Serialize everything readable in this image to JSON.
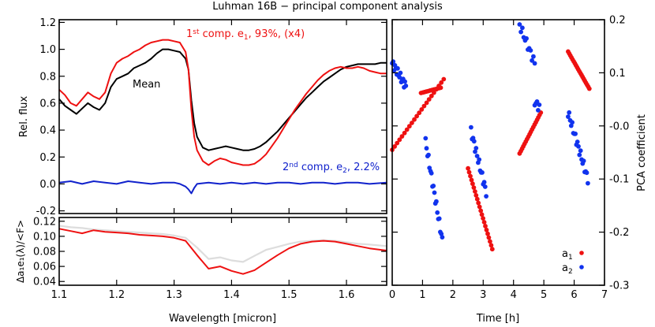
{
  "title": "Luhman 16B − principal component analysis",
  "colors": {
    "red": "#ee1111",
    "black": "#000000",
    "blue": "#1122cc",
    "gray": "#dddddd",
    "blue_dots": "#1133ee"
  },
  "chart_data": [
    {
      "id": "spectra",
      "type": "line",
      "ylabel": "Rel. flux",
      "xlim": [
        1.1,
        1.67
      ],
      "ylim": [
        -0.22,
        1.22
      ],
      "yticks": [
        -0.2,
        0.0,
        0.2,
        0.4,
        0.6,
        0.8,
        1.0,
        1.2
      ],
      "ytick_labels": [
        "-0.2",
        "0.0",
        "0.2",
        "0.4",
        "0.6",
        "0.8",
        "1.0",
        "1.2"
      ],
      "annotations": {
        "mean": "Mean",
        "comp1": {
          "pre": "1",
          "sup": "st",
          "mid": " comp. e",
          "sub": "1",
          "post": ", 93%, (x4)"
        },
        "comp2": {
          "pre": "2",
          "sup": "nd",
          "mid": " comp. e",
          "sub": "2",
          "post": ", 2.2%"
        }
      },
      "series": [
        {
          "name": "Mean",
          "color": "#000000",
          "x": [
            1.1,
            1.11,
            1.12,
            1.13,
            1.14,
            1.15,
            1.16,
            1.17,
            1.18,
            1.19,
            1.2,
            1.21,
            1.22,
            1.23,
            1.24,
            1.25,
            1.26,
            1.27,
            1.28,
            1.29,
            1.3,
            1.31,
            1.32,
            1.325,
            1.33,
            1.335,
            1.34,
            1.35,
            1.36,
            1.37,
            1.38,
            1.39,
            1.4,
            1.41,
            1.42,
            1.43,
            1.44,
            1.45,
            1.46,
            1.47,
            1.48,
            1.49,
            1.5,
            1.51,
            1.52,
            1.53,
            1.54,
            1.55,
            1.56,
            1.57,
            1.58,
            1.59,
            1.6,
            1.61,
            1.62,
            1.63,
            1.64,
            1.65,
            1.66,
            1.67
          ],
          "y": [
            0.63,
            0.58,
            0.55,
            0.52,
            0.56,
            0.6,
            0.57,
            0.55,
            0.6,
            0.72,
            0.78,
            0.8,
            0.82,
            0.86,
            0.88,
            0.9,
            0.93,
            0.97,
            1.0,
            1.0,
            0.99,
            0.98,
            0.93,
            0.85,
            0.62,
            0.45,
            0.35,
            0.27,
            0.25,
            0.26,
            0.27,
            0.28,
            0.27,
            0.26,
            0.25,
            0.25,
            0.26,
            0.28,
            0.31,
            0.35,
            0.39,
            0.44,
            0.49,
            0.54,
            0.59,
            0.64,
            0.68,
            0.72,
            0.76,
            0.79,
            0.82,
            0.85,
            0.87,
            0.88,
            0.89,
            0.89,
            0.89,
            0.89,
            0.9,
            0.9
          ]
        },
        {
          "name": "1st comp. e1",
          "color": "#ee1111",
          "x": [
            1.1,
            1.11,
            1.12,
            1.13,
            1.14,
            1.15,
            1.16,
            1.17,
            1.18,
            1.19,
            1.2,
            1.21,
            1.22,
            1.23,
            1.24,
            1.25,
            1.26,
            1.27,
            1.28,
            1.29,
            1.3,
            1.31,
            1.32,
            1.325,
            1.33,
            1.335,
            1.34,
            1.35,
            1.36,
            1.37,
            1.38,
            1.39,
            1.4,
            1.41,
            1.42,
            1.43,
            1.44,
            1.45,
            1.46,
            1.47,
            1.48,
            1.49,
            1.5,
            1.51,
            1.52,
            1.53,
            1.54,
            1.55,
            1.56,
            1.57,
            1.58,
            1.59,
            1.6,
            1.61,
            1.62,
            1.63,
            1.64,
            1.65,
            1.66,
            1.67
          ],
          "y": [
            0.7,
            0.66,
            0.6,
            0.58,
            0.63,
            0.68,
            0.65,
            0.63,
            0.68,
            0.82,
            0.9,
            0.93,
            0.95,
            0.98,
            1.0,
            1.03,
            1.05,
            1.06,
            1.07,
            1.07,
            1.06,
            1.05,
            0.98,
            0.85,
            0.55,
            0.35,
            0.25,
            0.17,
            0.14,
            0.17,
            0.19,
            0.18,
            0.16,
            0.15,
            0.14,
            0.14,
            0.15,
            0.18,
            0.22,
            0.28,
            0.34,
            0.41,
            0.48,
            0.55,
            0.61,
            0.67,
            0.72,
            0.77,
            0.81,
            0.84,
            0.86,
            0.87,
            0.86,
            0.86,
            0.87,
            0.86,
            0.84,
            0.83,
            0.82,
            0.82
          ]
        },
        {
          "name": "2nd comp. e2",
          "color": "#1122cc",
          "x": [
            1.1,
            1.12,
            1.14,
            1.16,
            1.18,
            1.2,
            1.22,
            1.24,
            1.26,
            1.28,
            1.3,
            1.31,
            1.32,
            1.325,
            1.33,
            1.335,
            1.34,
            1.36,
            1.38,
            1.4,
            1.42,
            1.44,
            1.46,
            1.48,
            1.5,
            1.52,
            1.54,
            1.56,
            1.58,
            1.6,
            1.62,
            1.64,
            1.67
          ],
          "y": [
            0.01,
            0.02,
            0.0,
            0.02,
            0.01,
            0.0,
            0.02,
            0.01,
            0.0,
            0.01,
            0.01,
            0.0,
            -0.02,
            -0.04,
            -0.07,
            -0.03,
            0.0,
            0.01,
            0.0,
            0.01,
            0.0,
            0.01,
            0.0,
            0.01,
            0.01,
            0.0,
            0.01,
            0.01,
            0.0,
            0.01,
            0.01,
            0.0,
            0.01
          ]
        }
      ]
    },
    {
      "id": "variability",
      "type": "line",
      "ylabel": "Δa₁e₁(λ)/<F>",
      "xlabel": "Wavelength [micron]",
      "xlim": [
        1.1,
        1.67
      ],
      "ylim": [
        0.035,
        0.125
      ],
      "xticks": [
        1.1,
        1.2,
        1.3,
        1.4,
        1.5,
        1.6
      ],
      "xtick_labels": [
        "1.1",
        "1.2",
        "1.3",
        "1.4",
        "1.5",
        "1.6"
      ],
      "yticks": [
        0.04,
        0.06,
        0.08,
        0.1,
        0.12
      ],
      "ytick_labels": [
        "0.04",
        "0.06",
        "0.08",
        "0.10",
        "0.12"
      ],
      "series": [
        {
          "name": "",
          "color": "#dddddd",
          "x": [
            1.1,
            1.12,
            1.14,
            1.16,
            1.18,
            1.2,
            1.22,
            1.24,
            1.26,
            1.28,
            1.3,
            1.32,
            1.34,
            1.36,
            1.38,
            1.4,
            1.42,
            1.44,
            1.46,
            1.48,
            1.5,
            1.52,
            1.54,
            1.56,
            1.58,
            1.6,
            1.62,
            1.64,
            1.67
          ],
          "y": [
            0.114,
            0.112,
            0.111,
            0.109,
            0.108,
            0.107,
            0.106,
            0.105,
            0.104,
            0.103,
            0.101,
            0.098,
            0.085,
            0.07,
            0.072,
            0.068,
            0.066,
            0.074,
            0.082,
            0.086,
            0.09,
            0.093,
            0.094,
            0.095,
            0.094,
            0.092,
            0.09,
            0.089,
            0.087
          ]
        },
        {
          "name": "",
          "color": "#ee1111",
          "x": [
            1.1,
            1.12,
            1.14,
            1.16,
            1.18,
            1.2,
            1.22,
            1.24,
            1.26,
            1.28,
            1.3,
            1.32,
            1.34,
            1.36,
            1.38,
            1.4,
            1.42,
            1.44,
            1.46,
            1.48,
            1.5,
            1.52,
            1.54,
            1.56,
            1.58,
            1.6,
            1.62,
            1.64,
            1.67
          ],
          "y": [
            0.11,
            0.107,
            0.104,
            0.108,
            0.106,
            0.105,
            0.104,
            0.102,
            0.101,
            0.1,
            0.098,
            0.094,
            0.075,
            0.057,
            0.06,
            0.054,
            0.05,
            0.055,
            0.065,
            0.075,
            0.084,
            0.09,
            0.093,
            0.094,
            0.093,
            0.09,
            0.087,
            0.084,
            0.081
          ]
        }
      ]
    },
    {
      "id": "coefficients",
      "type": "scatter",
      "ylabel": "PCA coefficient",
      "xlabel": "Time [h]",
      "xlim": [
        0,
        7
      ],
      "ylim": [
        -0.3,
        0.2
      ],
      "xticks": [
        0,
        1,
        2,
        3,
        4,
        5,
        6,
        7
      ],
      "xtick_labels": [
        "0",
        "1",
        "2",
        "3",
        "4",
        "5",
        "6",
        "7"
      ],
      "yticks": [
        -0.3,
        -0.2,
        -0.1,
        0.0,
        0.1,
        0.2
      ],
      "ytick_labels": [
        "-0.3",
        "-0.2",
        "-0.1",
        "-0.0",
        "0.1",
        "0.2"
      ],
      "legend": {
        "placement": "bottom-right",
        "a1": {
          "base": "a",
          "sub": "1"
        },
        "a2": {
          "base": "a",
          "sub": "2"
        }
      },
      "series": [
        {
          "name": "a1",
          "color": "#ee1111",
          "segments": [
            {
              "t": [
                0.0,
                1.7
              ],
              "y": [
                -0.045,
                0.088
              ],
              "n": 22
            },
            {
              "t": [
                0.95,
                1.6
              ],
              "y": [
                0.062,
                0.072
              ],
              "n": 12
            },
            {
              "t": [
                2.5,
                3.3
              ],
              "y": [
                -0.08,
                -0.232
              ],
              "n": 22
            },
            {
              "t": [
                4.2,
                4.9
              ],
              "y": [
                -0.052,
                0.025
              ],
              "n": 18
            },
            {
              "t": [
                5.8,
                6.5
              ],
              "y": [
                0.14,
                0.07
              ],
              "n": 20
            }
          ]
        },
        {
          "name": "a2",
          "color": "#1133ee",
          "segments": [
            {
              "t": [
                0.0,
                0.45
              ],
              "y": [
                0.118,
                0.075
              ],
              "n": 16
            },
            {
              "t": [
                1.1,
                1.65
              ],
              "y": [
                -0.03,
                -0.215
              ],
              "n": 18
            },
            {
              "t": [
                2.6,
                3.1
              ],
              "y": [
                -0.01,
                -0.125
              ],
              "n": 16
            },
            {
              "t": [
                4.2,
                4.7
              ],
              "y": [
                0.19,
                0.118
              ],
              "n": 12
            },
            {
              "t": [
                4.7,
                4.85
              ],
              "y": [
                0.045,
                0.035
              ],
              "n": 5
            },
            {
              "t": [
                5.8,
                6.45
              ],
              "y": [
                0.025,
                -0.1
              ],
              "n": 20
            }
          ]
        }
      ]
    }
  ]
}
